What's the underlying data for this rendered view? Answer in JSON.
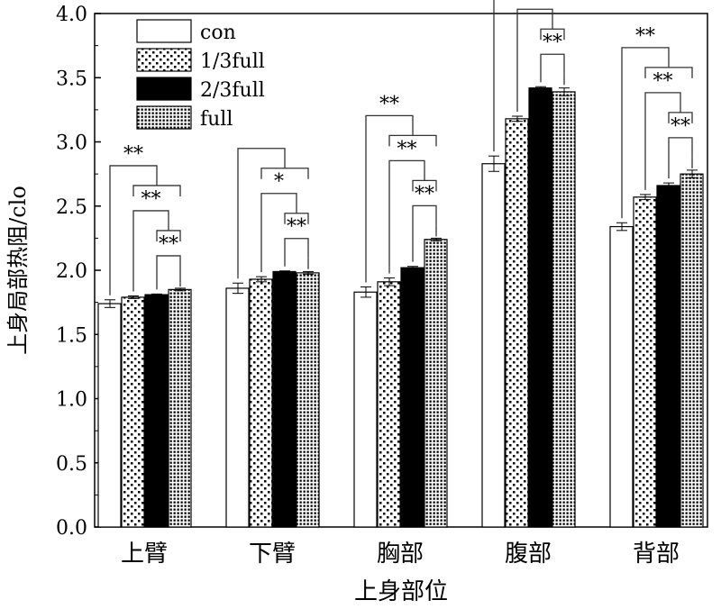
{
  "chart_data": {
    "type": "bar",
    "title": "",
    "xlabel": "上身部位",
    "ylabel": "上身局部热阻/clo",
    "ylim": [
      0,
      4.0
    ],
    "yticks": [
      "0.0",
      "0.5",
      "1.0",
      "1.5",
      "2.0",
      "2.5",
      "3.0",
      "3.5",
      "4.0"
    ],
    "categories": [
      "上臂",
      "下臂",
      "胸部",
      "腹部",
      "背部"
    ],
    "legend_position": "top-left",
    "series": [
      {
        "name": "con",
        "fill": "white",
        "values": [
          1.74,
          1.86,
          1.83,
          2.83,
          2.34
        ],
        "errors": [
          0.03,
          0.04,
          0.04,
          0.06,
          0.03
        ]
      },
      {
        "name": "1/3full",
        "fill": "sparse-dots",
        "values": [
          1.79,
          1.93,
          1.91,
          3.18,
          2.57
        ],
        "errors": [
          0.01,
          0.02,
          0.03,
          0.02,
          0.02
        ]
      },
      {
        "name": "2/3full",
        "fill": "black",
        "values": [
          1.81,
          1.99,
          2.02,
          3.42,
          2.66
        ],
        "errors": [
          0.005,
          0.005,
          0.01,
          0.01,
          0.02
        ]
      },
      {
        "name": "full",
        "fill": "dense-dots",
        "values": [
          1.85,
          1.98,
          2.24,
          3.39,
          2.75
        ],
        "errors": [
          0.01,
          0.01,
          0.01,
          0.03,
          0.03
        ]
      }
    ],
    "significance": [
      [
        "**",
        "**",
        "**"
      ],
      [
        "**",
        "*",
        ""
      ],
      [
        "**",
        "**",
        "**"
      ],
      [
        "**",
        "**",
        ""
      ],
      [
        "**",
        "**",
        "**"
      ]
    ]
  }
}
